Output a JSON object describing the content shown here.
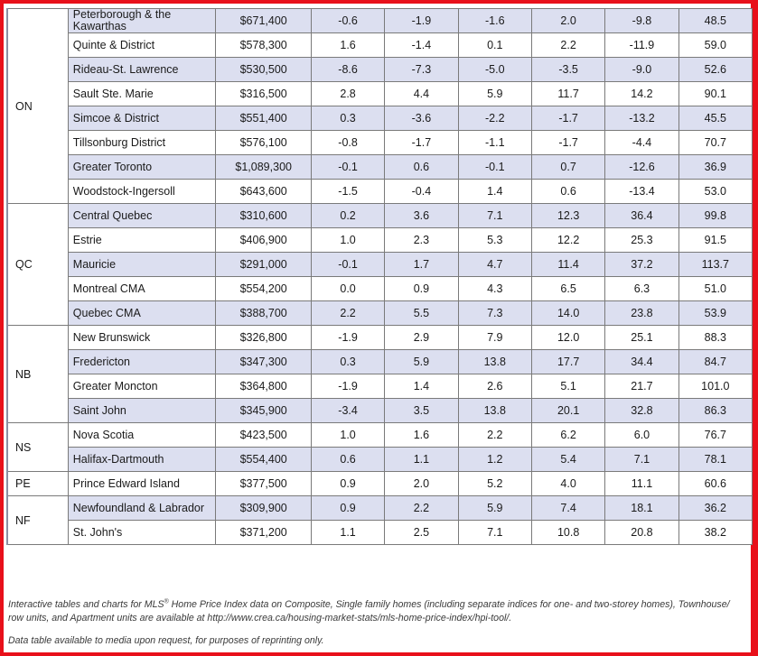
{
  "rows": [
    {
      "prov": "ON",
      "span": 8,
      "name": "Peterborough & the Kawarthas",
      "price": "$671,400",
      "v": [
        "-0.6",
        "-1.9",
        "-1.6",
        "2.0",
        "-9.8",
        "48.5"
      ]
    },
    {
      "name": "Quinte & District",
      "price": "$578,300",
      "v": [
        "1.6",
        "-1.4",
        "0.1",
        "2.2",
        "-11.9",
        "59.0"
      ]
    },
    {
      "name": "Rideau-St. Lawrence",
      "price": "$530,500",
      "v": [
        "-8.6",
        "-7.3",
        "-5.0",
        "-3.5",
        "-9.0",
        "52.6"
      ]
    },
    {
      "name": "Sault Ste. Marie",
      "price": "$316,500",
      "v": [
        "2.8",
        "4.4",
        "5.9",
        "11.7",
        "14.2",
        "90.1"
      ]
    },
    {
      "name": "Simcoe & District",
      "price": "$551,400",
      "v": [
        "0.3",
        "-3.6",
        "-2.2",
        "-1.7",
        "-13.2",
        "45.5"
      ]
    },
    {
      "name": "Tillsonburg District",
      "price": "$576,100",
      "v": [
        "-0.8",
        "-1.7",
        "-1.1",
        "-1.7",
        "-4.4",
        "70.7"
      ]
    },
    {
      "name": "Greater Toronto",
      "price": "$1,089,300",
      "v": [
        "-0.1",
        "0.6",
        "-0.1",
        "0.7",
        "-12.6",
        "36.9"
      ]
    },
    {
      "name": "Woodstock-Ingersoll",
      "price": "$643,600",
      "v": [
        "-1.5",
        "-0.4",
        "1.4",
        "0.6",
        "-13.4",
        "53.0"
      ]
    },
    {
      "prov": "QC",
      "span": 5,
      "name": "Central Quebec",
      "price": "$310,600",
      "v": [
        "0.2",
        "3.6",
        "7.1",
        "12.3",
        "36.4",
        "99.8"
      ]
    },
    {
      "name": "Estrie",
      "price": "$406,900",
      "v": [
        "1.0",
        "2.3",
        "5.3",
        "12.2",
        "25.3",
        "91.5"
      ]
    },
    {
      "name": "Mauricie",
      "price": "$291,000",
      "v": [
        "-0.1",
        "1.7",
        "4.7",
        "11.4",
        "37.2",
        "113.7"
      ]
    },
    {
      "name": "Montreal CMA",
      "price": "$554,200",
      "v": [
        "0.0",
        "0.9",
        "4.3",
        "6.5",
        "6.3",
        "51.0"
      ]
    },
    {
      "name": "Quebec CMA",
      "price": "$388,700",
      "v": [
        "2.2",
        "5.5",
        "7.3",
        "14.0",
        "23.8",
        "53.9"
      ]
    },
    {
      "prov": "NB",
      "span": 4,
      "name": "New Brunswick",
      "price": "$326,800",
      "v": [
        "-1.9",
        "2.9",
        "7.9",
        "12.0",
        "25.1",
        "88.3"
      ]
    },
    {
      "name": "Fredericton",
      "price": "$347,300",
      "v": [
        "0.3",
        "5.9",
        "13.8",
        "17.7",
        "34.4",
        "84.7"
      ]
    },
    {
      "name": "Greater Moncton",
      "price": "$364,800",
      "v": [
        "-1.9",
        "1.4",
        "2.6",
        "5.1",
        "21.7",
        "101.0"
      ]
    },
    {
      "name": "Saint John",
      "price": "$345,900",
      "v": [
        "-3.4",
        "3.5",
        "13.8",
        "20.1",
        "32.8",
        "86.3"
      ]
    },
    {
      "prov": "NS",
      "span": 2,
      "name": "Nova Scotia",
      "price": "$423,500",
      "v": [
        "1.0",
        "1.6",
        "2.2",
        "6.2",
        "6.0",
        "76.7"
      ]
    },
    {
      "name": "Halifax-Dartmouth",
      "price": "$554,400",
      "v": [
        "0.6",
        "1.1",
        "1.2",
        "5.4",
        "7.1",
        "78.1"
      ]
    },
    {
      "prov": "PE",
      "span": 1,
      "name": "Prince Edward Island",
      "price": "$377,500",
      "v": [
        "0.9",
        "2.0",
        "5.2",
        "4.0",
        "11.1",
        "60.6"
      ]
    },
    {
      "prov": "NF",
      "span": 2,
      "name": "Newfoundland & Labrador",
      "price": "$309,900",
      "v": [
        "0.9",
        "2.2",
        "5.9",
        "7.4",
        "18.1",
        "36.2"
      ]
    },
    {
      "name": "St. John's",
      "price": "$371,200",
      "v": [
        "1.1",
        "2.5",
        "7.1",
        "10.8",
        "20.8",
        "38.2"
      ]
    }
  ],
  "notes": {
    "line1_before": "Interactive tables and charts for MLS",
    "line1_sup": "®",
    "line1_after": " Home Price Index data on Composite, Single family homes (including separate indices for one- and two-storey homes), Townhouse/ row units, and Apartment units are available at http://www.crea.ca/housing-market-stats/mls-home-price-index/hpi-tool/.",
    "line2": "Data table available to media upon request, for purposes of reprinting only."
  },
  "colors": {
    "frame": "#e8101a",
    "row_shade": "#dcdff0",
    "grid": "#7a7a7a"
  }
}
